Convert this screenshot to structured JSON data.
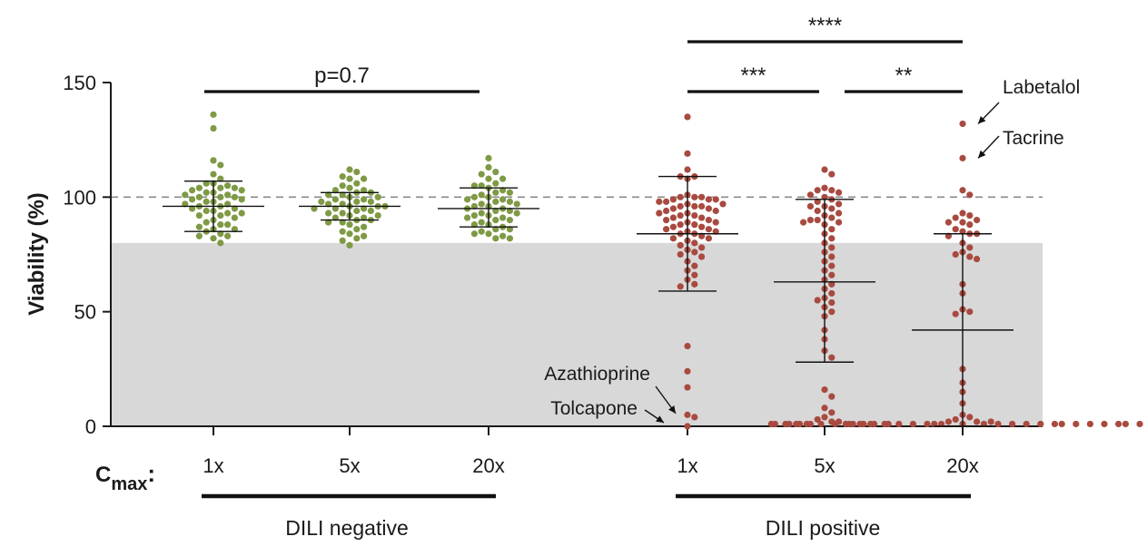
{
  "chart_data": {
    "type": "scatter",
    "ylabel": "Viability (%)",
    "ylim": [
      0,
      150
    ],
    "yticks": [
      "0",
      "50",
      "100",
      "150"
    ],
    "reference_line": 100,
    "shaded_band": [
      0,
      80
    ],
    "cmax_label": "C",
    "cmax_sub": "max",
    "cmax_colon": ":",
    "categories": [
      "1x",
      "5x",
      "20x",
      "1x",
      "5x",
      "20x"
    ],
    "groups": [
      {
        "name": "DILI negative",
        "color": "#7f9a45",
        "columns": [
          0,
          1,
          2
        ]
      },
      {
        "name": "DILI positive",
        "color": "#a84a40",
        "columns": [
          3,
          4,
          5
        ]
      }
    ],
    "series": [
      {
        "category": "1x",
        "group": "DILI negative",
        "mean": 96,
        "sd_low": 85,
        "sd_high": 107,
        "values": [
          136,
          130,
          116,
          114,
          110,
          108,
          106,
          106,
          105,
          104,
          104,
          104,
          103,
          103,
          102,
          102,
          101,
          101,
          100,
          100,
          100,
          99,
          99,
          98,
          98,
          97,
          97,
          96,
          96,
          95,
          95,
          94,
          94,
          93,
          93,
          92,
          92,
          91,
          90,
          89,
          88,
          88,
          87,
          86,
          86,
          85,
          84,
          83,
          83,
          82,
          80
        ]
      },
      {
        "category": "5x",
        "group": "DILI negative",
        "mean": 96,
        "sd_low": 90,
        "sd_high": 102,
        "values": [
          112,
          111,
          109,
          108,
          108,
          106,
          105,
          104,
          103,
          103,
          102,
          102,
          101,
          101,
          100,
          100,
          99,
          99,
          98,
          98,
          98,
          97,
          97,
          96,
          96,
          96,
          95,
          95,
          95,
          94,
          94,
          93,
          93,
          92,
          92,
          91,
          91,
          90,
          90,
          89,
          89,
          88,
          87,
          86,
          85,
          84,
          83,
          82,
          81,
          79
        ]
      },
      {
        "category": "20x",
        "group": "DILI negative",
        "mean": 95,
        "sd_low": 87,
        "sd_high": 104,
        "values": [
          117,
          113,
          111,
          110,
          108,
          108,
          106,
          105,
          105,
          104,
          103,
          102,
          102,
          101,
          100,
          100,
          99,
          99,
          98,
          98,
          97,
          97,
          96,
          96,
          95,
          95,
          94,
          94,
          93,
          93,
          92,
          92,
          91,
          91,
          90,
          90,
          89,
          88,
          88,
          87,
          86,
          86,
          85,
          84,
          84,
          83,
          82,
          82
        ]
      },
      {
        "category": "1x",
        "group": "DILI positive",
        "mean": 84,
        "sd_low": 59,
        "sd_high": 109,
        "values": [
          135,
          119,
          112,
          109,
          109,
          108,
          101,
          100,
          100,
          100,
          99,
          99,
          99,
          98,
          98,
          97,
          97,
          96,
          96,
          96,
          95,
          95,
          94,
          94,
          93,
          93,
          92,
          92,
          91,
          91,
          90,
          90,
          89,
          89,
          88,
          88,
          87,
          87,
          86,
          86,
          85,
          85,
          84,
          84,
          83,
          82,
          82,
          81,
          80,
          79,
          78,
          77,
          76,
          75,
          74,
          72,
          70,
          68,
          66,
          64,
          62,
          61,
          35,
          24,
          17,
          5,
          4,
          0
        ]
      },
      {
        "category": "5x",
        "group": "DILI positive",
        "mean": 63,
        "sd_low": 28,
        "sd_high": 99,
        "values": [
          112,
          110,
          104,
          103,
          103,
          102,
          101,
          100,
          99,
          98,
          97,
          96,
          96,
          95,
          94,
          93,
          92,
          91,
          90,
          90,
          89,
          89,
          88,
          86,
          84,
          82,
          80,
          78,
          76,
          74,
          72,
          70,
          68,
          66,
          64,
          62,
          60,
          58,
          56,
          55,
          54,
          52,
          50,
          48,
          42,
          38,
          33,
          30,
          16,
          13,
          8,
          6,
          4,
          3,
          2,
          2,
          1,
          1,
          1,
          1,
          1,
          1,
          1,
          1,
          1
        ]
      },
      {
        "category": "20x",
        "group": "DILI positive",
        "mean": 42,
        "sd_low": 0,
        "sd_high": 84,
        "values": [
          132,
          117,
          103,
          101,
          93,
          92,
          91,
          90,
          89,
          89,
          88,
          86,
          85,
          84,
          84,
          83,
          80,
          78,
          76,
          75,
          74,
          73,
          62,
          58,
          51,
          50,
          49,
          25,
          19,
          15,
          10,
          5,
          4,
          3,
          2,
          2,
          2,
          1,
          1,
          1,
          1,
          1,
          1,
          1,
          1,
          1,
          1,
          1,
          1,
          1,
          1,
          1,
          1,
          1,
          1,
          1,
          1,
          1,
          1,
          1,
          1,
          1,
          1,
          1,
          1,
          1,
          1,
          1
        ]
      }
    ],
    "significance": [
      {
        "label": "p=0.7",
        "from": 0,
        "to": 2
      },
      {
        "label": "****",
        "from": 3,
        "to": 5
      },
      {
        "label": "***",
        "from": 3,
        "to": 4
      },
      {
        "label": "**",
        "from": 4,
        "to": 5
      }
    ],
    "annotations": [
      {
        "label": "Labetalol",
        "column": 5,
        "value": 132
      },
      {
        "label": "Tacrine",
        "column": 5,
        "value": 117
      },
      {
        "label": "Azathioprine",
        "column": 3,
        "value": 4
      },
      {
        "label": "Tolcapone",
        "column": 3,
        "value": 0
      }
    ]
  }
}
